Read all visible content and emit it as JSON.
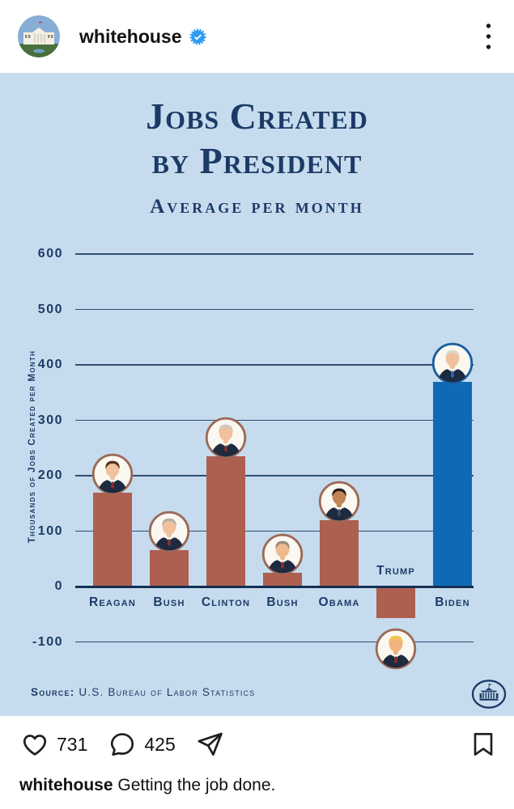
{
  "header": {
    "username": "whitehouse",
    "verified": true,
    "menu_icon": "three-dots-vertical"
  },
  "chart_data": {
    "type": "bar",
    "title": "Jobs Created by President",
    "title_lines": [
      "Jobs Created",
      "by President"
    ],
    "subtitle": "Average per month",
    "ylabel": "Thousands of Jobs Created per Month",
    "xlabel": "",
    "yticks": [
      600,
      500,
      400,
      300,
      200,
      100,
      0,
      -100
    ],
    "ylim": [
      -150,
      650
    ],
    "grid": "horizontal",
    "legend": "none",
    "categories": [
      "Reagan",
      "Bush",
      "Clinton",
      "Bush",
      "Obama",
      "Trump",
      "Biden"
    ],
    "values": [
      170,
      65,
      235,
      25,
      120,
      -55,
      370
    ],
    "bar_colors": [
      "#ad5f50",
      "#ad5f50",
      "#ad5f50",
      "#ad5f50",
      "#ad5f50",
      "#ad5f50",
      "#0f6ab5"
    ],
    "presidents": [
      {
        "name": "Reagan",
        "hair": "#53321f",
        "skin": "#f0c19c",
        "tie": "#8c2f2a",
        "ring": "#9c6a59"
      },
      {
        "name": "Bush",
        "hair": "#b6b0a4",
        "skin": "#f0c19c",
        "tie": "#8c2f2a",
        "ring": "#9c6a59"
      },
      {
        "name": "Clinton",
        "hair": "#cdc8bf",
        "skin": "#f0c19c",
        "tie": "#8c2f2a",
        "ring": "#9c6a59"
      },
      {
        "name": "Bush",
        "hair": "#978e7f",
        "skin": "#eeb98e",
        "tie": "#8c2f2a",
        "ring": "#9c6a59"
      },
      {
        "name": "Obama",
        "hair": "#241f1b",
        "skin": "#c08552",
        "tie": "#3a4a6b",
        "ring": "#9c6a59"
      },
      {
        "name": "Trump",
        "hair": "#eec64f",
        "skin": "#f2b37e",
        "tie": "#8c2f2a",
        "ring": "#9c6a59"
      },
      {
        "name": "Biden",
        "hair": "#dcd8d0",
        "skin": "#f0c19c",
        "tie": "#2b6cb3",
        "ring": "#1b5f9e"
      }
    ],
    "source_label": "Source:",
    "source_text": "U.S. Bureau of Labor Statistics",
    "colors": {
      "background": "#c6dcee",
      "navy_text": "#1c3a66",
      "axis_line": "#132f52",
      "gridline": "#2e4d72",
      "bar_red": "#ad5f50",
      "bar_blue": "#0f6ab5"
    }
  },
  "actions": {
    "likes": "731",
    "comments": "425",
    "icons": [
      "heart-icon",
      "comment-icon",
      "share-icon",
      "bookmark-icon"
    ]
  },
  "caption": {
    "username": "whitehouse",
    "text": "Getting the job done."
  },
  "badge_color": "#2f9bf0"
}
